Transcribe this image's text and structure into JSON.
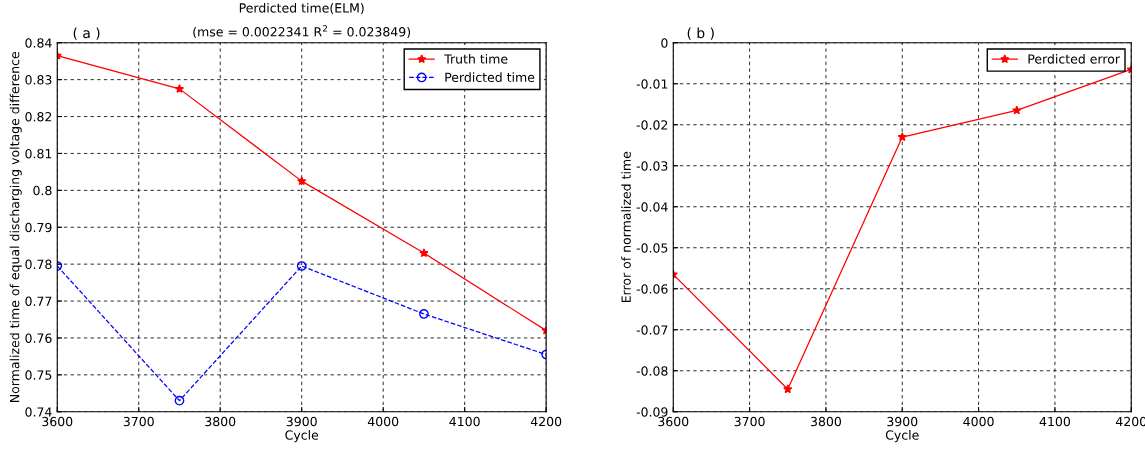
{
  "chart_data": [
    {
      "type": "line",
      "title": "Perdicted time(ELM)",
      "subtitle": "(mse = 0.0022341 R$^{2}$ = 0.023849)",
      "xlabel": "Cycle",
      "ylabel": "Normalized time of equal discharging voltage difference",
      "annotations": [
        "( a )"
      ],
      "x": [
        3600,
        3750,
        3900,
        4050,
        4200
      ],
      "series": [
        {
          "name": "Truth time",
          "color": "#ff0000",
          "values": [
            0.8365,
            0.8275,
            0.8025,
            0.783,
            0.762
          ],
          "marker": "star",
          "line_style": "solid"
        },
        {
          "name": "Perdicted time",
          "color": "#0000ff",
          "values": [
            0.7795,
            0.743,
            0.7795,
            0.7665,
            0.7555
          ],
          "marker": "circle",
          "line_style": "dashed"
        }
      ],
      "xlim": [
        3600,
        4200
      ],
      "xticks": [
        3600,
        3700,
        3800,
        3900,
        4000,
        4100,
        4200
      ],
      "ylim": [
        0.74,
        0.84
      ],
      "yticks": [
        0.74,
        0.75,
        0.76,
        0.77,
        0.78,
        0.79,
        0.8,
        0.81,
        0.82,
        0.83,
        0.84
      ],
      "grid": true,
      "legend": "top right"
    },
    {
      "type": "line",
      "xlabel": "Cycle",
      "ylabel": "Error of normalized time",
      "annotations": [
        "( b )"
      ],
      "x": [
        3600,
        3750,
        3900,
        4050,
        4200
      ],
      "series": [
        {
          "name": "Perdicted error",
          "color": "#ff0000",
          "values": [
            -0.0565,
            -0.0845,
            -0.023,
            -0.0165,
            -0.0065
          ],
          "marker": "star",
          "line_style": "solid"
        }
      ],
      "xlim": [
        3600,
        4200
      ],
      "xticks": [
        3600,
        3700,
        3800,
        3900,
        4000,
        4100,
        4200
      ],
      "ylim": [
        -0.09,
        0
      ],
      "yticks": [
        -0.09,
        -0.08,
        -0.07,
        -0.06,
        -0.05,
        -0.04,
        -0.03,
        -0.02,
        -0.01,
        0
      ],
      "grid": true,
      "legend": "top right"
    }
  ]
}
